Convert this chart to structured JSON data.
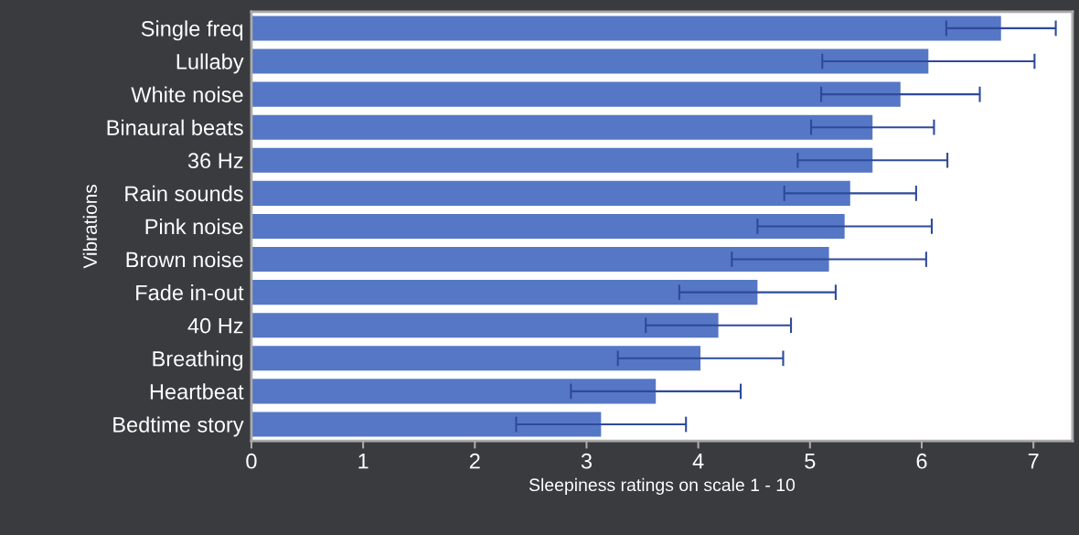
{
  "chart_data": {
    "type": "bar",
    "orientation": "horizontal",
    "xlabel": "Sleepiness ratings on scale 1 - 10",
    "ylabel": "Vibrations",
    "categories": [
      "Single freq",
      "Lullaby",
      "White noise",
      "Binaural beats",
      "36 Hz",
      "Rain sounds",
      "Pink noise",
      "Brown noise",
      "Fade in-out",
      "40 Hz",
      "Breathing",
      "Heartbeat",
      "Bedtime story"
    ],
    "values": [
      6.71,
      6.06,
      5.81,
      5.56,
      5.56,
      5.36,
      5.31,
      5.17,
      4.53,
      4.18,
      4.02,
      3.62,
      3.13
    ],
    "errors": [
      0.49,
      0.95,
      0.71,
      0.55,
      0.67,
      0.59,
      0.78,
      0.87,
      0.7,
      0.65,
      0.74,
      0.76,
      0.76
    ],
    "color": "#5677c5",
    "xlim": [
      0,
      7.35
    ],
    "xticks": [
      0,
      1,
      2,
      3,
      4,
      5,
      6,
      7
    ],
    "grid": false,
    "legend": false
  }
}
